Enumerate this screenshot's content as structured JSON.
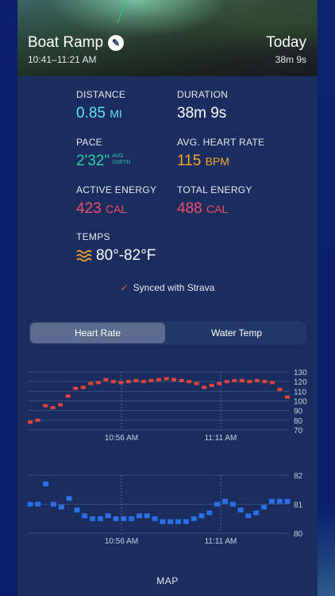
{
  "header": {
    "title": "Boat Ramp",
    "time_range": "10:41–11:21 AM",
    "day": "Today",
    "duration": "38m 9s"
  },
  "stats": {
    "distance": {
      "label": "DISTANCE",
      "value": "0.85",
      "unit": "MI"
    },
    "duration": {
      "label": "DURATION",
      "value": "38m 9s"
    },
    "pace": {
      "label": "PACE",
      "value": "2'32\"",
      "sub1": "AVG",
      "sub2": "/100YD"
    },
    "heart_rate": {
      "label": "AVG. HEART RATE",
      "value": "115",
      "unit": "BPM"
    },
    "active_energy": {
      "label": "ACTIVE ENERGY",
      "value": "423",
      "unit": "CAL"
    },
    "total_energy": {
      "label": "TOTAL ENERGY",
      "value": "488",
      "unit": "CAL"
    },
    "temps": {
      "label": "TEMPS",
      "value": "80°-82°F"
    }
  },
  "sync": {
    "check": "✓",
    "text": "Synced with Strava"
  },
  "tabs": {
    "heart_rate": "Heart Rate",
    "water_temp": "Water Temp",
    "active": "heart_rate"
  },
  "map_label": "MAP",
  "colors": {
    "accent_red": "#e0443d",
    "accent_blue": "#2a6fe6"
  },
  "chart_data": [
    {
      "type": "line",
      "series": [
        {
          "values": [
            78,
            80,
            95,
            93,
            96,
            105,
            113,
            114,
            118,
            119,
            122,
            120,
            119,
            120,
            121,
            120,
            121,
            122,
            123,
            122,
            121,
            120,
            118,
            114,
            116,
            118,
            120,
            121,
            121,
            120,
            121,
            120,
            119,
            112,
            104
          ]
        }
      ],
      "ylim": [
        70,
        130
      ],
      "yticks": [
        "130",
        "120",
        "110",
        "100",
        "90",
        "80",
        "70"
      ],
      "xticks": [
        "10:56 AM",
        "11:11 AM"
      ]
    },
    {
      "type": "line",
      "series": [
        {
          "values": [
            81,
            81,
            81.7,
            81,
            80.9,
            81.2,
            80.8,
            80.6,
            80.5,
            80.5,
            80.6,
            80.5,
            80.5,
            80.5,
            80.6,
            80.6,
            80.5,
            80.4,
            80.4,
            80.4,
            80.4,
            80.5,
            80.6,
            80.7,
            81,
            81.1,
            81,
            80.8,
            80.6,
            80.7,
            80.9,
            81.1,
            81.1,
            81.1
          ]
        }
      ],
      "ylim": [
        80,
        82
      ],
      "yticks": [
        "82",
        "81",
        "80"
      ],
      "xticks": [
        "10:56 AM",
        "11:11 AM"
      ]
    }
  ]
}
